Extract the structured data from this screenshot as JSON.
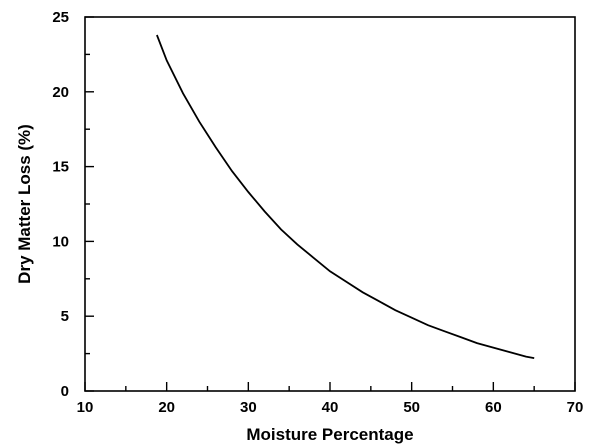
{
  "chart_data": {
    "type": "line",
    "title": "",
    "xlabel": "Moisture Percentage",
    "ylabel": "Dry Matter Loss (%)",
    "xlim": [
      10,
      70
    ],
    "ylim": [
      0,
      25
    ],
    "x_ticks": [
      10,
      20,
      30,
      40,
      50,
      60,
      70
    ],
    "y_ticks": [
      0,
      5,
      10,
      15,
      20,
      25
    ],
    "grid": false,
    "legend": "none",
    "series": [
      {
        "x": [
          18.8,
          20,
          22,
          24,
          26,
          28,
          30,
          32,
          34,
          36,
          38,
          40,
          42,
          44,
          46,
          48,
          50,
          52,
          54,
          56,
          58,
          60,
          62,
          64,
          65
        ],
        "y": [
          23.8,
          22.1,
          19.9,
          18.0,
          16.3,
          14.7,
          13.3,
          12.0,
          10.8,
          9.8,
          8.9,
          8.0,
          7.3,
          6.6,
          6.0,
          5.4,
          4.9,
          4.4,
          4.0,
          3.6,
          3.2,
          2.9,
          2.6,
          2.3,
          2.2
        ]
      }
    ],
    "colors": {
      "line": "#000000",
      "axes": "#000000"
    }
  }
}
